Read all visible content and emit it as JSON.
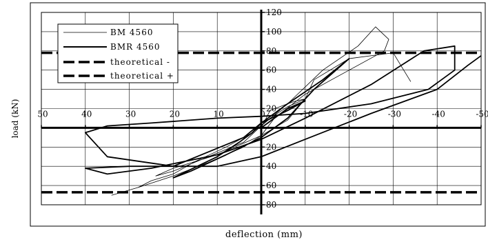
{
  "chart_data": {
    "type": "line",
    "title": "",
    "xlabel": "deflection (mm)",
    "ylabel": "load (kN)",
    "xlim": [
      50,
      -50
    ],
    "ylim": [
      -80,
      120
    ],
    "x_reversed": true,
    "grid": true,
    "legend_position": "top-left",
    "x_ticks": [
      "50",
      "40",
      "30",
      "20",
      "10",
      "0",
      "-10",
      "-20",
      "-30",
      "-40",
      "-50"
    ],
    "y_ticks": [
      "120",
      "100",
      "80",
      "60",
      "40",
      "20",
      "",
      "20",
      "40",
      "60",
      "80"
    ],
    "colors": {
      "series_line": "#000000",
      "grid": "#000000",
      "background": "#ffffff"
    },
    "series": [
      {
        "name": "BM 4560",
        "style": "thin",
        "x": [
          0,
          -2,
          -6,
          -8,
          -10,
          -6,
          -2,
          2,
          8,
          15,
          20,
          25,
          28,
          34,
          28,
          20,
          12,
          4,
          0,
          -3,
          -10,
          -20,
          -28,
          -29,
          -26,
          -22,
          -14,
          -6,
          0,
          4,
          12,
          20,
          24,
          20,
          10,
          0,
          -6,
          -10,
          -12,
          -20,
          -30,
          -34
        ],
        "y": [
          0,
          18,
          25,
          28,
          30,
          22,
          10,
          -5,
          -20,
          -35,
          -48,
          -55,
          -62,
          -70,
          -62,
          -50,
          -36,
          -20,
          -8,
          10,
          35,
          60,
          80,
          92,
          105,
          85,
          60,
          25,
          2,
          -15,
          -30,
          -45,
          -50,
          -42,
          -28,
          -8,
          8,
          30,
          50,
          72,
          78,
          48
        ]
      },
      {
        "name": "BMR 4560",
        "style": "thick",
        "x": [
          0,
          -3,
          -6,
          -10,
          -6,
          0,
          2,
          5,
          10,
          20,
          16,
          8,
          0,
          -6,
          -12,
          -20,
          -14,
          -6,
          0,
          4,
          12,
          20,
          30,
          40,
          35,
          25,
          10,
          0,
          -10,
          -25,
          -37,
          -44,
          -44,
          -38,
          -25,
          -10,
          0,
          10,
          25,
          35,
          40,
          35,
          20,
          10,
          0,
          -10,
          -25,
          -40,
          -47,
          -50
        ],
        "y": [
          0,
          10,
          20,
          28,
          18,
          5,
          -5,
          -15,
          -30,
          -52,
          -45,
          -28,
          -10,
          10,
          40,
          72,
          50,
          25,
          5,
          -10,
          -25,
          -40,
          -40,
          -42,
          -48,
          -42,
          -28,
          -12,
          10,
          45,
          80,
          85,
          60,
          40,
          25,
          15,
          12,
          10,
          5,
          2,
          -5,
          -30,
          -40,
          -40,
          -30,
          -12,
          15,
          40,
          65,
          75
        ]
      },
      {
        "name": "theoretical -",
        "style": "dashed",
        "x": [
          50,
          -50
        ],
        "y": [
          78,
          78
        ]
      },
      {
        "name": "theoretical +",
        "style": "dashed",
        "x": [
          50,
          -50
        ],
        "y": [
          -67,
          -67
        ]
      }
    ]
  }
}
